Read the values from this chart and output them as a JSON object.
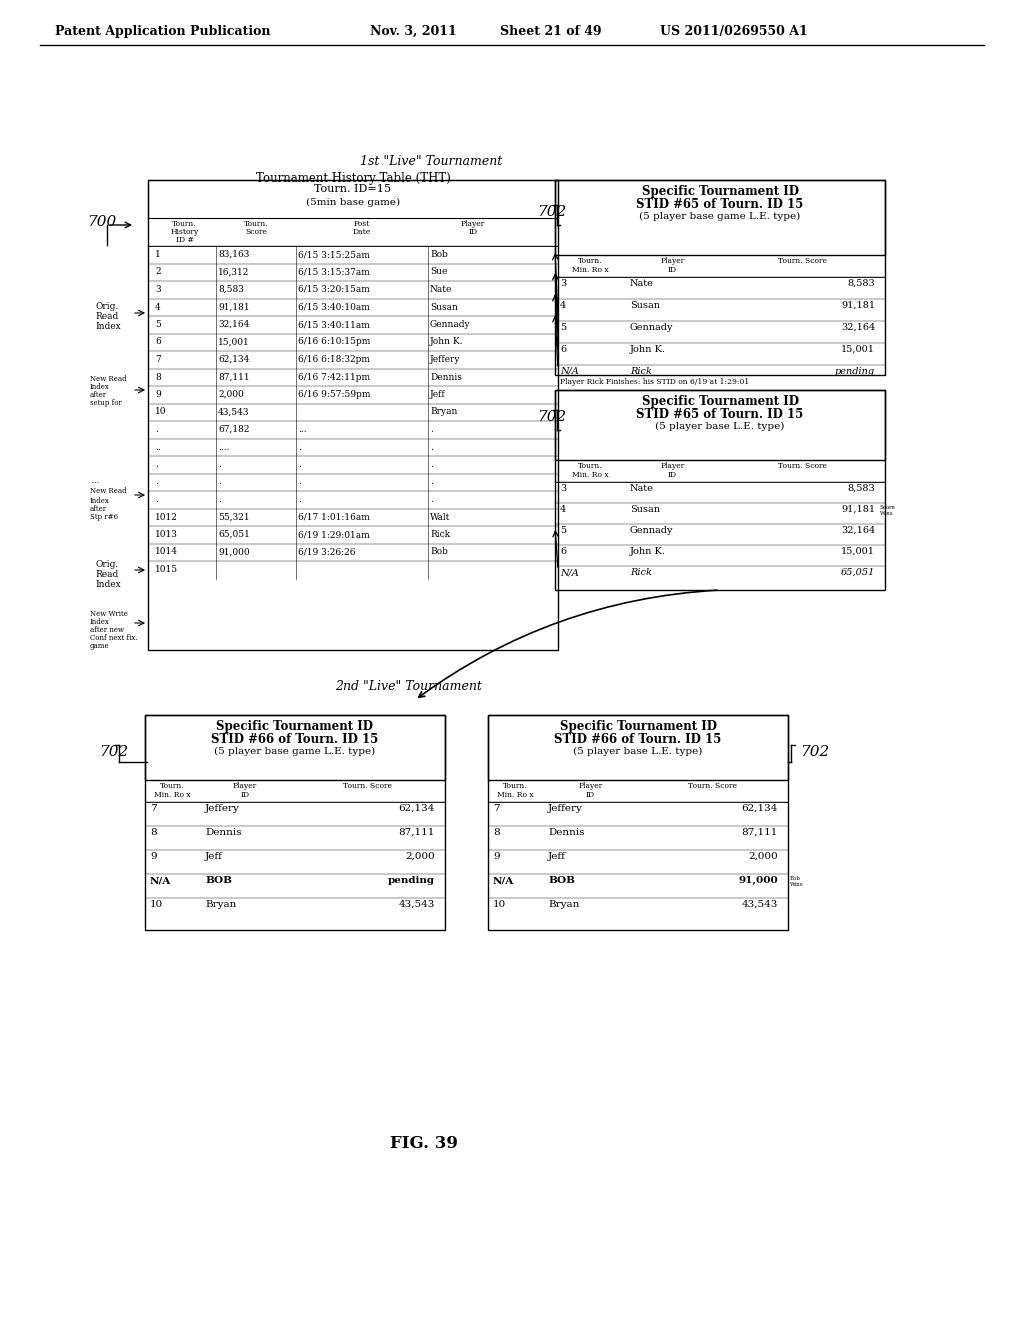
{
  "bg_color": "#ffffff",
  "header_text": "Patent Application Publication",
  "header_date": "Nov. 3, 2011",
  "header_sheet": "Sheet 21 of 49",
  "header_patent": "US 2011/0269550 A1",
  "title_1st": "1st \"Live\" Tournament",
  "title_2nd": "2nd \"Live\" Tournament",
  "fig_label": "FIG. 39",
  "tht_title": "Tournament History Table (THT)",
  "tht_subtitle1": "Tourn. ID=15",
  "tht_subtitle2": "(5min base game)",
  "tht_cols": [
    "Tourn.\nHistory\nID #",
    "Tourn.\nScore",
    "Post\nDate",
    "Player\nID"
  ],
  "tht_rows": [
    [
      "1",
      "83,163",
      "6/15 3:15:25am",
      "Bob"
    ],
    [
      "2",
      "16,312",
      "6/15 3:15:37am",
      "Sue"
    ],
    [
      "3",
      "8,583",
      "6/15 3:20:15am",
      "Nate"
    ],
    [
      "4",
      "91,181",
      "6/15 3:40:10am",
      "Susan"
    ],
    [
      "5",
      "32,164",
      "6/15 3:40:11am",
      "Gennady"
    ],
    [
      "6",
      "15,001",
      "6/16 6:10:15pm",
      "John K."
    ],
    [
      "7",
      "62,134",
      "6/16 6:18:32pm",
      "Jeffery"
    ],
    [
      "8",
      "87,111",
      "6/16 7:42:11pm",
      "Dennis"
    ],
    [
      "9",
      "2,000",
      "6/16 9:57:59pm",
      "Jeff"
    ],
    [
      "10",
      "43,543",
      "",
      "Bryan"
    ],
    [
      ".",
      "67,182",
      "...",
      "."
    ],
    [
      "..",
      "....",
      ".",
      "."
    ],
    [
      ".",
      ".",
      ".",
      "."
    ],
    [
      ".",
      ".",
      ".",
      "."
    ],
    [
      ".",
      ".",
      ".",
      "."
    ],
    [
      "1012",
      "55,321",
      "6/17 1:01:16am",
      "Walt"
    ],
    [
      "1013",
      "65,051",
      "6/19 1:29:01am",
      "Rick"
    ],
    [
      "1014",
      "91,000",
      "6/19 3:26:26",
      "Bob"
    ],
    [
      "1015",
      "",
      "",
      ""
    ]
  ],
  "stid65_title1": "Specific Tournament ID",
  "stid65_title2": "STID #65 of Tourn. ID 15",
  "stid65_title3": "(5 player base game L.E. type)",
  "stid65_cols": [
    "Tourn.\nMin. Ro x",
    "Player\nID",
    "Tourn. Score"
  ],
  "stid65_rows_top": [
    [
      "3",
      "Nate",
      "8,583"
    ],
    [
      "4",
      "Susan",
      "91,181"
    ],
    [
      "5",
      "Gennady",
      "32,164"
    ],
    [
      "6",
      "John K.",
      "15,001"
    ],
    [
      "N/A",
      "Rick",
      "pending"
    ]
  ],
  "stid65b_title1": "Specific Tournament ID",
  "stid65b_title2": "STID #65 of Tourn. ID 15",
  "stid65b_title3": "(5 player base L.E. type)",
  "stid65b_rows": [
    [
      "3",
      "Nate",
      "8,583"
    ],
    [
      "4",
      "Susan",
      "91,181"
    ],
    [
      "5",
      "Gennady",
      "32,164"
    ],
    [
      "6",
      "John K.",
      "15,001"
    ],
    [
      "N/A",
      "Rick",
      "65,051"
    ]
  ],
  "stid65_note": "Player Rick Finishes: his STID on 6/19 at 1:29:01",
  "stid66a_title1": "Specific Tournament ID",
  "stid66a_title2": "STID #66 of Tourn. ID 15",
  "stid66a_title3": "(5 player base game L.E. type)",
  "stid66a_rows": [
    [
      "7",
      "Jeffery",
      "62,134"
    ],
    [
      "8",
      "Dennis",
      "87,111"
    ],
    [
      "9",
      "Jeff",
      "2,000"
    ],
    [
      "N/A",
      "BOB",
      "pending"
    ],
    [
      "10",
      "Bryan",
      "43,543"
    ]
  ],
  "stid66b_title1": "Specific Tournament ID",
  "stid66b_title2": "STID #66 of Tourn. ID 15",
  "stid66b_title3": "(5 player base L.E. type)",
  "stid66b_rows": [
    [
      "7",
      "Jeffery",
      "62,134"
    ],
    [
      "8",
      "Dennis",
      "87,111"
    ],
    [
      "9",
      "Jeff",
      "2,000"
    ],
    [
      "N/A",
      "BOB",
      "91,000"
    ],
    [
      "10",
      "Bryan",
      "43,543"
    ]
  ],
  "label_700": "700",
  "label_702": "702"
}
